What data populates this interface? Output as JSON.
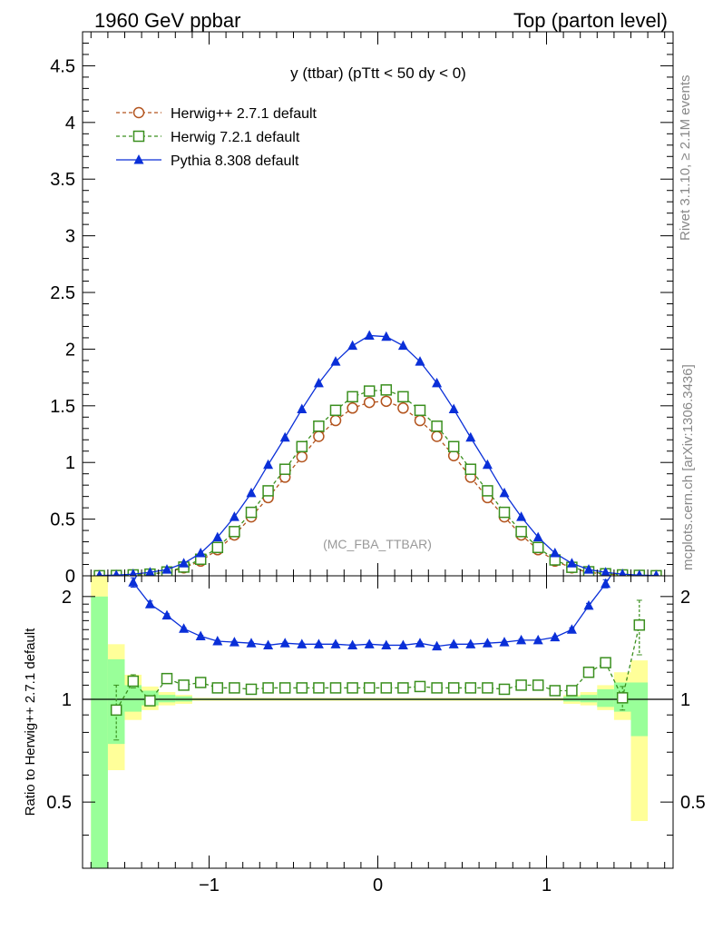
{
  "header": {
    "left": "1960 GeV ppbar",
    "right": "Top (parton level)"
  },
  "side_labels": {
    "rivet": "Rivet 3.1.10, ≥ 2.1M events",
    "mcplots": "mcplots.cern.ch [arXiv:1306.3436]"
  },
  "plot": {
    "title": "y (ttbar) (pTtt < 50 dy < 0)",
    "watermark": "(MC_FBA_TTBAR)",
    "ratio_ylabel": "Ratio to Herwig++ 2.7.1 default"
  },
  "colors": {
    "herwigpp": "#b3541e",
    "herwig7": "#3a8f1e",
    "pythia": "#0a2fd8",
    "band_yellow": "#ffff99",
    "band_green": "#99ff99"
  },
  "chart_data": [
    {
      "type": "line",
      "panel": "main",
      "xlim": [
        -1.75,
        1.75
      ],
      "ylim": [
        0,
        4.8
      ],
      "yticks": [
        "0",
        "0.5",
        "1",
        "1.5",
        "2",
        "2.5",
        "3",
        "3.5",
        "4",
        "4.5"
      ],
      "legend_position": "top-left",
      "x": [
        -1.65,
        -1.55,
        -1.45,
        -1.35,
        -1.25,
        -1.15,
        -1.05,
        -0.95,
        -0.85,
        -0.75,
        -0.65,
        -0.55,
        -0.45,
        -0.35,
        -0.25,
        -0.15,
        -0.05,
        0.05,
        0.15,
        0.25,
        0.35,
        0.45,
        0.55,
        0.65,
        0.75,
        0.85,
        0.95,
        1.05,
        1.15,
        1.25,
        1.35,
        1.45,
        1.55,
        1.65
      ],
      "series": [
        {
          "name": "Herwig++ 2.7.1 default",
          "marker": "open-circle",
          "dashed": true,
          "values": [
            0.001,
            0.003,
            0.007,
            0.015,
            0.03,
            0.07,
            0.13,
            0.23,
            0.36,
            0.52,
            0.69,
            0.87,
            1.05,
            1.23,
            1.37,
            1.48,
            1.53,
            1.54,
            1.48,
            1.37,
            1.23,
            1.06,
            0.87,
            0.69,
            0.52,
            0.36,
            0.23,
            0.13,
            0.07,
            0.03,
            0.015,
            0.007,
            0.003,
            0.001
          ]
        },
        {
          "name": "Herwig 7.2.1 default",
          "marker": "open-square",
          "dashed": true,
          "values": [
            0.001,
            0.003,
            0.008,
            0.015,
            0.034,
            0.077,
            0.146,
            0.25,
            0.39,
            0.56,
            0.75,
            0.94,
            1.14,
            1.32,
            1.46,
            1.58,
            1.63,
            1.64,
            1.58,
            1.46,
            1.32,
            1.14,
            0.94,
            0.75,
            0.56,
            0.39,
            0.25,
            0.14,
            0.075,
            0.036,
            0.018,
            0.008,
            0.004,
            0.001
          ]
        },
        {
          "name": "Pythia 8.308 default",
          "marker": "filled-triangle",
          "dashed": false,
          "values": [
            0.003,
            0.006,
            0.015,
            0.03,
            0.055,
            0.11,
            0.2,
            0.34,
            0.52,
            0.73,
            0.98,
            1.22,
            1.47,
            1.7,
            1.89,
            2.03,
            2.12,
            2.11,
            2.03,
            1.89,
            1.7,
            1.47,
            1.22,
            0.98,
            0.73,
            0.52,
            0.34,
            0.2,
            0.11,
            0.055,
            0.03,
            0.015,
            0.006,
            0.003
          ]
        }
      ]
    },
    {
      "type": "line",
      "panel": "ratio",
      "xlim": [
        -1.75,
        1.75
      ],
      "ylim": [
        0.32,
        2.3
      ],
      "yticks": [
        "0.5",
        "1",
        "2"
      ],
      "xticks": [
        "−1",
        "0",
        "1"
      ],
      "xtick_values": [
        -1,
        0,
        1
      ],
      "x": [
        -1.65,
        -1.55,
        -1.45,
        -1.35,
        -1.25,
        -1.15,
        -1.05,
        -0.95,
        -0.85,
        -0.75,
        -0.65,
        -0.55,
        -0.45,
        -0.35,
        -0.25,
        -0.15,
        -0.05,
        0.05,
        0.15,
        0.25,
        0.35,
        0.45,
        0.55,
        0.65,
        0.75,
        0.85,
        0.95,
        1.05,
        1.15,
        1.25,
        1.35,
        1.45,
        1.55,
        1.65
      ],
      "bands": {
        "x_edges": [
          -1.7,
          -1.6,
          -1.5,
          -1.4,
          -1.3,
          -1.2,
          -1.1,
          1.1,
          1.2,
          1.3,
          1.4,
          1.5,
          1.6
        ],
        "yellow": [
          [
            0.32,
            2.3
          ],
          [
            0.62,
            1.45
          ],
          [
            0.87,
            1.18
          ],
          [
            0.93,
            1.09
          ],
          [
            0.96,
            1.05
          ],
          [
            0.97,
            1.03
          ],
          [
            0.99,
            1.01
          ],
          [
            0.97,
            1.03
          ],
          [
            0.96,
            1.05
          ],
          [
            0.93,
            1.1
          ],
          [
            0.87,
            1.2
          ],
          [
            0.44,
            1.3
          ]
        ],
        "green": [
          [
            0.32,
            2.0
          ],
          [
            0.74,
            1.31
          ],
          [
            0.92,
            1.1
          ],
          [
            0.96,
            1.06
          ],
          [
            0.98,
            1.03
          ],
          [
            0.985,
            1.02
          ],
          [
            0.995,
            1.005
          ],
          [
            0.985,
            1.02
          ],
          [
            0.98,
            1.03
          ],
          [
            0.95,
            1.07
          ],
          [
            0.92,
            1.12
          ],
          [
            0.78,
            1.12
          ]
        ]
      },
      "series": [
        {
          "name": "Herwig 7.2.1 default",
          "x": [
            -1.55,
            -1.45,
            -1.35,
            -1.25,
            -1.15,
            -1.05,
            -0.95,
            -0.85,
            -0.75,
            -0.65,
            -0.55,
            -0.45,
            -0.35,
            -0.25,
            -0.15,
            -0.05,
            0.05,
            0.15,
            0.25,
            0.35,
            0.45,
            0.55,
            0.65,
            0.75,
            0.85,
            0.95,
            1.05,
            1.15,
            1.25,
            1.35,
            1.45,
            1.55
          ],
          "values": [
            0.93,
            1.13,
            0.99,
            1.15,
            1.1,
            1.12,
            1.08,
            1.08,
            1.07,
            1.08,
            1.08,
            1.08,
            1.08,
            1.08,
            1.08,
            1.08,
            1.08,
            1.08,
            1.09,
            1.08,
            1.08,
            1.08,
            1.08,
            1.07,
            1.1,
            1.1,
            1.06,
            1.06,
            1.2,
            1.28,
            1.01,
            1.65
          ],
          "errors": [
            0.17,
            0.05,
            0.03,
            0.02,
            0.01,
            0.01,
            0.01,
            0.01,
            0.01,
            0.01,
            0.01,
            0.01,
            0.01,
            0.01,
            0.01,
            0.01,
            0.01,
            0.01,
            0.01,
            0.01,
            0.01,
            0.01,
            0.01,
            0.01,
            0.01,
            0.01,
            0.01,
            0.02,
            0.03,
            0.04,
            0.08,
            0.3
          ]
        },
        {
          "name": "Pythia 8.308 default",
          "x": [
            -1.45,
            -1.35,
            -1.25,
            -1.15,
            -1.05,
            -0.95,
            -0.85,
            -0.75,
            -0.65,
            -0.55,
            -0.45,
            -0.35,
            -0.25,
            -0.15,
            -0.05,
            0.05,
            0.15,
            0.25,
            0.35,
            0.45,
            0.55,
            0.65,
            0.75,
            0.85,
            0.95,
            1.05,
            1.15,
            1.25,
            1.35
          ],
          "values": [
            2.2,
            1.9,
            1.76,
            1.61,
            1.53,
            1.48,
            1.47,
            1.46,
            1.44,
            1.46,
            1.45,
            1.45,
            1.45,
            1.44,
            1.45,
            1.44,
            1.44,
            1.46,
            1.43,
            1.45,
            1.45,
            1.46,
            1.47,
            1.49,
            1.49,
            1.52,
            1.6,
            1.88,
            2.18
          ],
          "errors": [
            0.07,
            0.04,
            0.02,
            0.01,
            0.01,
            0.01,
            0.01,
            0.01,
            0.01,
            0.01,
            0.01,
            0.01,
            0.01,
            0.01,
            0.01,
            0.01,
            0.01,
            0.01,
            0.01,
            0.01,
            0.01,
            0.01,
            0.01,
            0.01,
            0.01,
            0.01,
            0.02,
            0.03,
            0.06
          ]
        }
      ]
    }
  ]
}
